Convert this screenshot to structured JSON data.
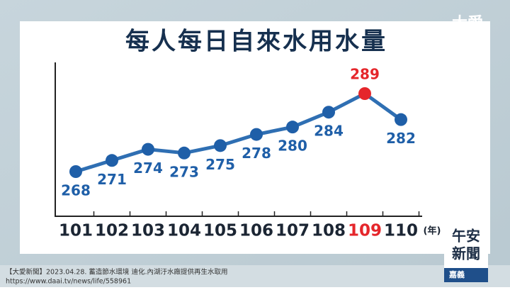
{
  "chart_data": {
    "type": "line",
    "title": "每人每日自來水用水量",
    "categories": [
      "101",
      "102",
      "103",
      "104",
      "105",
      "106",
      "107",
      "108",
      "109",
      "110"
    ],
    "x_unit": "(年)",
    "series": [
      {
        "values": [
          268,
          271,
          274,
          273,
          275,
          278,
          280,
          284,
          289,
          282
        ],
        "color": "#2f6fb3",
        "point_colors": [
          "#1f5fa8",
          "#1f5fa8",
          "#1f5fa8",
          "#1f5fa8",
          "#1f5fa8",
          "#1f5fa8",
          "#1f5fa8",
          "#1f5fa8",
          "#e5262b",
          "#1f5fa8"
        ]
      }
    ]
  },
  "broadcast": {
    "logo": "大愛",
    "source": "【大愛新聞】2023.04.28. 蓄造節水環境 迪化.內湖汙水廠提供再生水取用",
    "url": "https://www.daai.tv/news/life/558961",
    "program_line1": "午安",
    "program_line2": "新聞",
    "location": "嘉義"
  }
}
